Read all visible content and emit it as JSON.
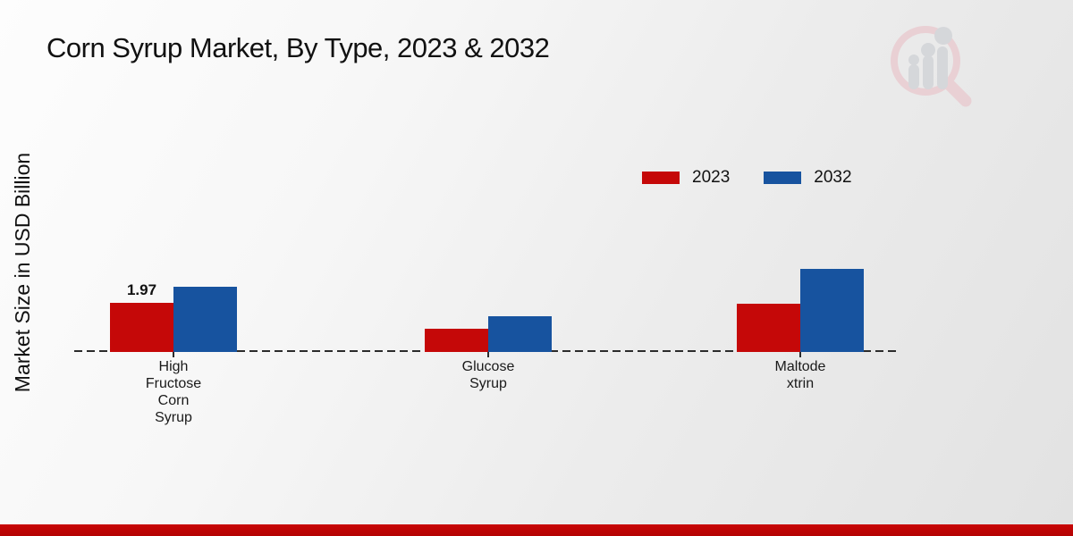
{
  "header": {
    "title": "Corn Syrup Market, By Type, 2023 & 2032"
  },
  "y_axis": {
    "label": "Market Size in USD Billion"
  },
  "legend": {
    "items": [
      {
        "label": "2023",
        "color": "#c50808"
      },
      {
        "label": "2032",
        "color": "#17539f"
      }
    ]
  },
  "icons": {
    "watermark": "bar-chart-magnifier-logo"
  },
  "page": {
    "footer_bar_color": "#c00404",
    "background_top": "#fdfdfd",
    "background_bottom": "#e2e2e2",
    "baseline_color": "#2b2b2b"
  },
  "chart_data": {
    "type": "bar",
    "title": "Corn Syrup Market, By Type, 2023 & 2032",
    "ylabel": "Market Size in USD Billion",
    "xlabel": "",
    "categories": [
      "High Fructose Corn Syrup",
      "Glucose Syrup",
      "Maltodextrin"
    ],
    "category_label_lines": [
      [
        "High",
        "Fructose",
        "Corn",
        "Syrup"
      ],
      [
        "Glucose",
        "Syrup"
      ],
      [
        "Maltode",
        "xtrin"
      ]
    ],
    "series": [
      {
        "name": "2023",
        "color": "#c50808",
        "values": [
          1.97,
          0.93,
          1.93
        ]
      },
      {
        "name": "2032",
        "color": "#17539f",
        "values": [
          2.61,
          1.43,
          3.33
        ]
      }
    ],
    "ylim": [
      0,
      3.5
    ],
    "grid": false,
    "legend_position": "upper right",
    "baseline_style": "dashed",
    "annotations": [
      {
        "category_index": 0,
        "series_index": 0,
        "text": "1.97"
      }
    ]
  }
}
